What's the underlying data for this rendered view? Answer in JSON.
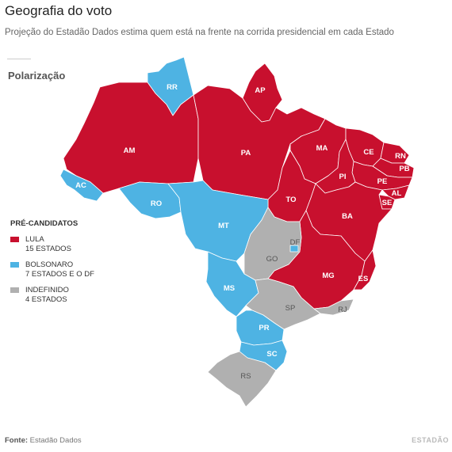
{
  "title": "Geografia do voto",
  "subtitle": "Projeção do Estadão Dados estima quem está na frente na corrida presidencial em cada Estado",
  "section": "Polarização",
  "legend": {
    "title": "PRÉ-CANDIDATOS",
    "items": [
      {
        "name": "LULA",
        "count": "15 ESTADOS",
        "color": "#c8102e"
      },
      {
        "name": "BOLSONARO",
        "count": "7 ESTADOS E O DF",
        "color": "#4eb3e3"
      },
      {
        "name": "INDEFINIDO",
        "count": "4 ESTADOS",
        "color": "#b0b0b0"
      }
    ]
  },
  "states": [
    {
      "code": "RR",
      "group": "BOLSONARO"
    },
    {
      "code": "AP",
      "group": "LULA"
    },
    {
      "code": "AM",
      "group": "LULA"
    },
    {
      "code": "PA",
      "group": "LULA"
    },
    {
      "code": "MA",
      "group": "LULA"
    },
    {
      "code": "CE",
      "group": "LULA"
    },
    {
      "code": "RN",
      "group": "LULA"
    },
    {
      "code": "PB",
      "group": "LULA"
    },
    {
      "code": "PE",
      "group": "LULA"
    },
    {
      "code": "AL",
      "group": "LULA"
    },
    {
      "code": "SE",
      "group": "LULA"
    },
    {
      "code": "PI",
      "group": "LULA"
    },
    {
      "code": "TO",
      "group": "LULA"
    },
    {
      "code": "BA",
      "group": "LULA"
    },
    {
      "code": "MG",
      "group": "LULA"
    },
    {
      "code": "ES",
      "group": "LULA"
    },
    {
      "code": "AC",
      "group": "BOLSONARO"
    },
    {
      "code": "RO",
      "group": "BOLSONARO"
    },
    {
      "code": "MT",
      "group": "BOLSONARO"
    },
    {
      "code": "MS",
      "group": "BOLSONARO"
    },
    {
      "code": "PR",
      "group": "BOLSONARO"
    },
    {
      "code": "SC",
      "group": "BOLSONARO"
    },
    {
      "code": "DF",
      "group": "BOLSONARO"
    },
    {
      "code": "GO",
      "group": "INDEFINIDO"
    },
    {
      "code": "SP",
      "group": "INDEFINIDO"
    },
    {
      "code": "RJ",
      "group": "INDEFINIDO"
    },
    {
      "code": "RS",
      "group": "INDEFINIDO"
    }
  ],
  "source_label": "Fonte:",
  "source_value": "Estadão Dados",
  "brand": "ESTADÃO"
}
